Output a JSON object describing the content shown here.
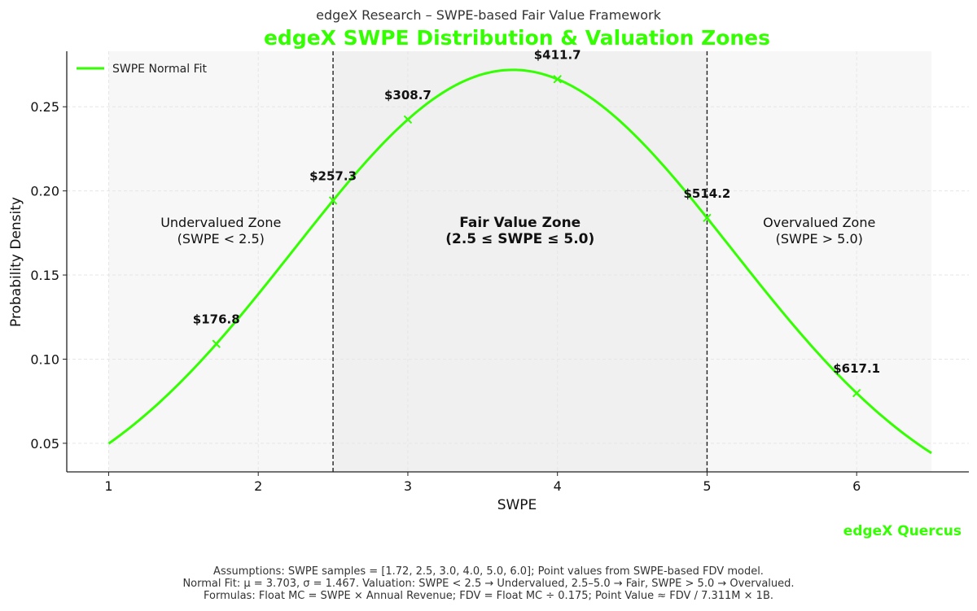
{
  "chart_data": {
    "type": "line",
    "suptitle": "edgeX Research – SWPE-based Fair Value Framework",
    "title": "edgeX SWPE Distribution & Valuation Zones",
    "xlabel": "SWPE",
    "ylabel": "Probability Density",
    "xlim": [
      0.72,
      6.75
    ],
    "ylim": [
      0.033,
      0.283
    ],
    "xticks": [
      1,
      2,
      3,
      4,
      5,
      6
    ],
    "yticks": [
      0.05,
      0.1,
      0.15,
      0.2,
      0.25
    ],
    "ytick_labels": [
      "0.05",
      "0.10",
      "0.15",
      "0.20",
      "0.25"
    ],
    "grid": true,
    "legend": {
      "location": "top-left",
      "entries": [
        "SWPE Normal Fit"
      ]
    },
    "series": [
      {
        "name": "SWPE Normal Fit",
        "color": "#33ff00",
        "mean": 3.703,
        "std": 1.467,
        "x_range": [
          1.0,
          6.5
        ]
      }
    ],
    "points": [
      {
        "x": 1.72,
        "label": "$176.8"
      },
      {
        "x": 2.5,
        "label": "$257.3"
      },
      {
        "x": 3.0,
        "label": "$308.7"
      },
      {
        "x": 4.0,
        "label": "$411.7"
      },
      {
        "x": 5.0,
        "label": "$514.2"
      },
      {
        "x": 6.0,
        "label": "$617.1"
      }
    ],
    "thresholds": [
      2.5,
      5.0
    ],
    "zones": [
      {
        "name": "Undervalued Zone",
        "range_text": "(SWPE < 2.5)",
        "from": 1.0,
        "to": 2.5,
        "bold": false
      },
      {
        "name": "Fair Value Zone",
        "range_text": "(2.5 ≤ SWPE ≤ 5.0)",
        "from": 2.5,
        "to": 5.0,
        "bold": true
      },
      {
        "name": "Overvalued Zone",
        "range_text": "(SWPE > 5.0)",
        "from": 5.0,
        "to": 6.5,
        "bold": false
      }
    ]
  },
  "brand": "edgeX Quercus",
  "footer": [
    "Assumptions: SWPE samples = [1.72, 2.5, 3.0, 4.0, 5.0, 6.0]; Point values from SWPE-based FDV model.",
    "Normal Fit: μ = 3.703, σ = 1.467. Valuation: SWPE < 2.5 → Undervalued, 2.5–5.0 → Fair, SWPE > 5.0 → Overvalued.",
    "Formulas: Float MC = SWPE × Annual Revenue; FDV = Float MC ÷ 0.175; Point Value ≈ FDV / 7.311M × 1B."
  ],
  "colors": {
    "curve": "#33ff00",
    "title": "#33ff00",
    "zone_outer": "#f7f7f7",
    "zone_fair": "#f0f0f0"
  }
}
